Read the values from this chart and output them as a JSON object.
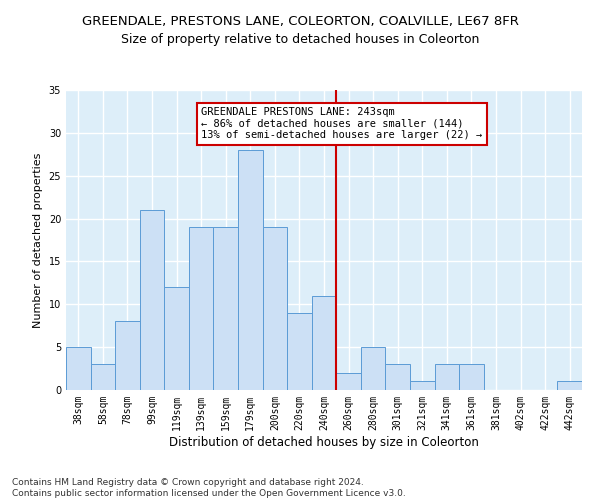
{
  "title": "GREENDALE, PRESTONS LANE, COLEORTON, COALVILLE, LE67 8FR",
  "subtitle": "Size of property relative to detached houses in Coleorton",
  "xlabel": "Distribution of detached houses by size in Coleorton",
  "ylabel": "Number of detached properties",
  "categories": [
    "38sqm",
    "58sqm",
    "78sqm",
    "99sqm",
    "119sqm",
    "139sqm",
    "159sqm",
    "179sqm",
    "200sqm",
    "220sqm",
    "240sqm",
    "260sqm",
    "280sqm",
    "301sqm",
    "321sqm",
    "341sqm",
    "361sqm",
    "381sqm",
    "402sqm",
    "422sqm",
    "442sqm"
  ],
  "values": [
    5,
    3,
    8,
    21,
    12,
    19,
    19,
    28,
    19,
    9,
    11,
    2,
    5,
    3,
    1,
    3,
    3,
    0,
    0,
    0,
    1
  ],
  "bar_color": "#cce0f5",
  "bar_edge_color": "#5b9bd5",
  "bar_width": 1.0,
  "vline_x": 10.5,
  "vline_color": "#cc0000",
  "annotation_text": "GREENDALE PRESTONS LANE: 243sqm\n← 86% of detached houses are smaller (144)\n13% of semi-detached houses are larger (22) →",
  "annotation_box_color": "#ffffff",
  "annotation_box_edge_color": "#cc0000",
  "ylim": [
    0,
    35
  ],
  "yticks": [
    0,
    5,
    10,
    15,
    20,
    25,
    30,
    35
  ],
  "background_color": "#ddeef9",
  "grid_color": "#ffffff",
  "footer": "Contains HM Land Registry data © Crown copyright and database right 2024.\nContains public sector information licensed under the Open Government Licence v3.0.",
  "title_fontsize": 9.5,
  "subtitle_fontsize": 9,
  "xlabel_fontsize": 8.5,
  "ylabel_fontsize": 8,
  "tick_fontsize": 7,
  "annotation_fontsize": 7.5,
  "footer_fontsize": 6.5
}
